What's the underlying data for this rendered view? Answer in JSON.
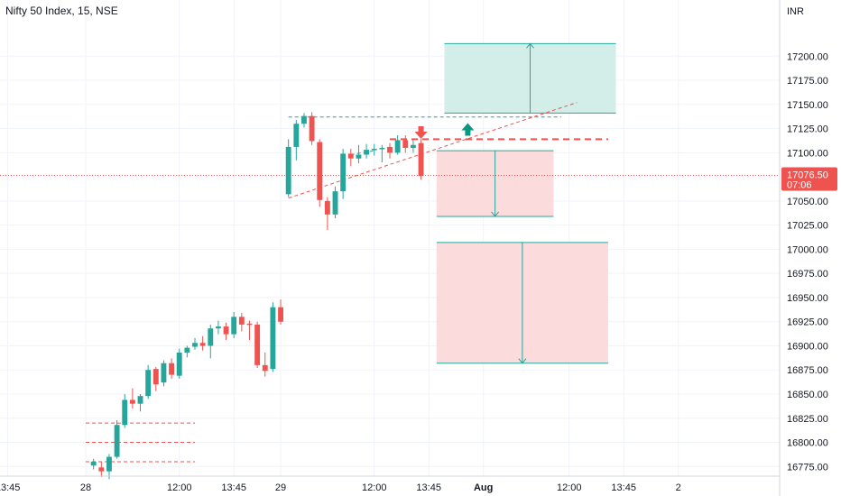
{
  "chart_data": {
    "type": "candlestick",
    "title": "Nifty 50 Index, 15, NSE",
    "currency": "INR",
    "y_range": [
      16765,
      17232
    ],
    "y_ticks": [
      17200,
      17175,
      17150,
      17125,
      17100,
      17050,
      17025,
      17000,
      16975,
      16950,
      16925,
      16900,
      16875,
      16850,
      16825,
      16800,
      16775
    ],
    "x_slot_range": [
      -25,
      75
    ],
    "x_ticks": [
      {
        "slot": -24,
        "label": "13:45",
        "bold": false
      },
      {
        "slot": -14,
        "label": "28",
        "bold": false
      },
      {
        "slot": -2,
        "label": "12:00",
        "bold": false
      },
      {
        "slot": 5,
        "label": "13:45",
        "bold": false
      },
      {
        "slot": 11,
        "label": "29",
        "bold": false
      },
      {
        "slot": 23,
        "label": "12:00",
        "bold": false
      },
      {
        "slot": 30,
        "label": "13:45",
        "bold": false
      },
      {
        "slot": 37,
        "label": "Aug",
        "bold": true
      },
      {
        "slot": 48,
        "label": "12:00",
        "bold": false
      },
      {
        "slot": 55,
        "label": "13:45",
        "bold": false
      },
      {
        "slot": 62,
        "label": "2",
        "bold": false
      }
    ],
    "last_price": {
      "value": 17076.5,
      "label": "17076.50",
      "countdown": "07:06",
      "color": "#ef5350"
    },
    "candles": [
      {
        "x": -13,
        "o": 16776,
        "h": 16783,
        "c": 16780,
        "l": 16772
      },
      {
        "x": -12,
        "o": 16774,
        "h": 16780,
        "c": 16770,
        "l": 16764
      },
      {
        "x": -11,
        "o": 16770,
        "h": 16788,
        "c": 16785,
        "l": 16762
      },
      {
        "x": -10,
        "o": 16785,
        "h": 16823,
        "c": 16818,
        "l": 16783
      },
      {
        "x": -9,
        "o": 16818,
        "h": 16850,
        "c": 16844,
        "l": 16815
      },
      {
        "x": -8,
        "o": 16844,
        "h": 16856,
        "c": 16840,
        "l": 16835
      },
      {
        "x": -7,
        "o": 16840,
        "h": 16850,
        "c": 16848,
        "l": 16832
      },
      {
        "x": -6,
        "o": 16848,
        "h": 16880,
        "c": 16875,
        "l": 16845
      },
      {
        "x": -5,
        "o": 16876,
        "h": 16878,
        "c": 16860,
        "l": 16853
      },
      {
        "x": -4,
        "o": 16862,
        "h": 16885,
        "c": 16882,
        "l": 16858
      },
      {
        "x": -3,
        "o": 16882,
        "h": 16887,
        "c": 16870,
        "l": 16866
      },
      {
        "x": -2,
        "o": 16869,
        "h": 16897,
        "c": 16893,
        "l": 16866
      },
      {
        "x": -1,
        "o": 16893,
        "h": 16900,
        "c": 16898,
        "l": 16888
      },
      {
        "x": 0,
        "o": 16899,
        "h": 16908,
        "c": 16903,
        "l": 16896
      },
      {
        "x": 1,
        "o": 16903,
        "h": 16910,
        "c": 16900,
        "l": 16895
      },
      {
        "x": 2,
        "o": 16900,
        "h": 16922,
        "c": 16918,
        "l": 16887
      },
      {
        "x": 3,
        "o": 16918,
        "h": 16926,
        "c": 16920,
        "l": 16912
      },
      {
        "x": 4,
        "o": 16920,
        "h": 16924,
        "c": 16912,
        "l": 16906
      },
      {
        "x": 5,
        "o": 16912,
        "h": 16935,
        "c": 16930,
        "l": 16908
      },
      {
        "x": 6,
        "o": 16930,
        "h": 16934,
        "c": 16922,
        "l": 16915
      },
      {
        "x": 7,
        "o": 16923,
        "h": 16926,
        "c": 16922,
        "l": 16906
      },
      {
        "x": 8,
        "o": 16922,
        "h": 16925,
        "c": 16880,
        "l": 16877
      },
      {
        "x": 9,
        "o": 16880,
        "h": 16893,
        "c": 16874,
        "l": 16868
      },
      {
        "x": 10,
        "o": 16876,
        "h": 16945,
        "c": 16940,
        "l": 16873
      },
      {
        "x": 11,
        "o": 16940,
        "h": 16948,
        "c": 16925,
        "l": 16922
      },
      {
        "x": 12,
        "o": 17057,
        "h": 17114,
        "c": 17106,
        "l": 17054
      },
      {
        "x": 13,
        "o": 17106,
        "h": 17134,
        "c": 17130,
        "l": 17092
      },
      {
        "x": 14,
        "o": 17130,
        "h": 17141,
        "c": 17138,
        "l": 17126
      },
      {
        "x": 15,
        "o": 17138,
        "h": 17142,
        "c": 17112,
        "l": 17108
      },
      {
        "x": 16,
        "o": 17111,
        "h": 17114,
        "c": 17051,
        "l": 17044
      },
      {
        "x": 17,
        "o": 17050,
        "h": 17054,
        "c": 17036,
        "l": 17020
      },
      {
        "x": 18,
        "o": 17036,
        "h": 17065,
        "c": 17060,
        "l": 17032
      },
      {
        "x": 19,
        "o": 17060,
        "h": 17104,
        "c": 17099,
        "l": 17052
      },
      {
        "x": 20,
        "o": 17099,
        "h": 17104,
        "c": 17094,
        "l": 17086
      },
      {
        "x": 21,
        "o": 17094,
        "h": 17108,
        "c": 17098,
        "l": 17089
      },
      {
        "x": 22,
        "o": 17098,
        "h": 17109,
        "c": 17103,
        "l": 17094
      },
      {
        "x": 23,
        "o": 17103,
        "h": 17109,
        "c": 17104,
        "l": 17097
      },
      {
        "x": 24,
        "o": 17104,
        "h": 17108,
        "c": 17105,
        "l": 17090
      },
      {
        "x": 25,
        "o": 17106,
        "h": 17110,
        "c": 17100,
        "l": 17094
      },
      {
        "x": 26,
        "o": 17100,
        "h": 17118,
        "c": 17113,
        "l": 17098
      },
      {
        "x": 27,
        "o": 17113,
        "h": 17118,
        "c": 17105,
        "l": 17100
      },
      {
        "x": 28,
        "o": 17105,
        "h": 17113,
        "c": 17108,
        "l": 17100
      },
      {
        "x": 29,
        "o": 17110,
        "h": 17114,
        "c": 17076,
        "l": 17072
      }
    ],
    "annotations": {
      "dashed_levels": [
        {
          "x0": -14,
          "x1": 0,
          "y": 16820,
          "color": "#ef5350"
        },
        {
          "x0": -14,
          "x1": 0,
          "y": 16800,
          "color": "#ef5350"
        },
        {
          "x0": -14,
          "x1": 0,
          "y": 16780,
          "color": "#ef5350"
        },
        {
          "x0": 12,
          "x1": 47,
          "y": 17137,
          "color": "#26a69a"
        },
        {
          "x0": 25,
          "x1": 53,
          "y": 17114,
          "color": "#ef5350",
          "bold": true
        }
      ],
      "trendlines": [
        {
          "x0": 12,
          "y0": 17053,
          "x1": 49,
          "y1": 17152,
          "color": "#ef5350"
        },
        {
          "x0": 20,
          "y0": 17098,
          "x1": 23,
          "y1": 17102,
          "color": "#26a69a"
        }
      ],
      "boxes": [
        {
          "x0": 32,
          "x1": 54,
          "y_top": 17213,
          "y_bottom": 17141,
          "arrow_x": 43,
          "arrow_dir": "up",
          "fill": "#d1ede8",
          "stroke": "#26a69a"
        },
        {
          "x0": 31,
          "x1": 46,
          "y_top": 17102,
          "y_bottom": 17034,
          "arrow_x": 38.5,
          "arrow_dir": "down",
          "fill": "#fcd9db",
          "stroke": "#26a69a"
        },
        {
          "x0": 31,
          "x1": 53,
          "y_top": 17007,
          "y_bottom": 16882,
          "arrow_x": 42,
          "arrow_dir": "down",
          "fill": "#fcd9db",
          "stroke": "#26a69a"
        }
      ],
      "signals": [
        {
          "x": 29,
          "y": 17119,
          "dir": "down",
          "color": "#ef5350"
        },
        {
          "x": 35,
          "y": 17126,
          "dir": "up",
          "color": "#089981"
        }
      ]
    },
    "colors": {
      "up": "#26a69a",
      "down": "#ef5350",
      "axis_text": "#131722",
      "grid": "#f0f3fa"
    }
  }
}
